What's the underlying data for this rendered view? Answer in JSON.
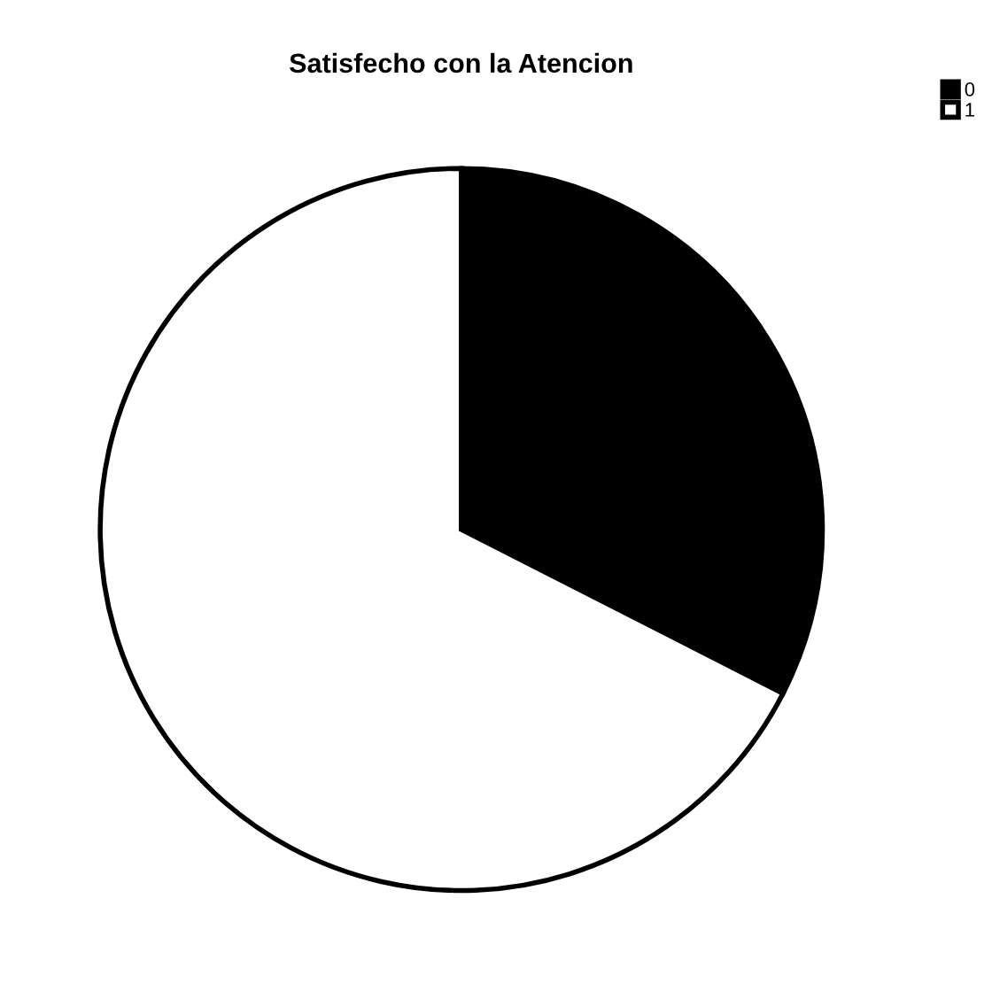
{
  "chart_data": {
    "type": "pie",
    "title": "Satisfecho con la Atencion",
    "categories": [
      "0",
      "1"
    ],
    "values": [
      32.5,
      67.5
    ],
    "colors": [
      "#000000",
      "#ffffff"
    ],
    "legend": "top right"
  }
}
